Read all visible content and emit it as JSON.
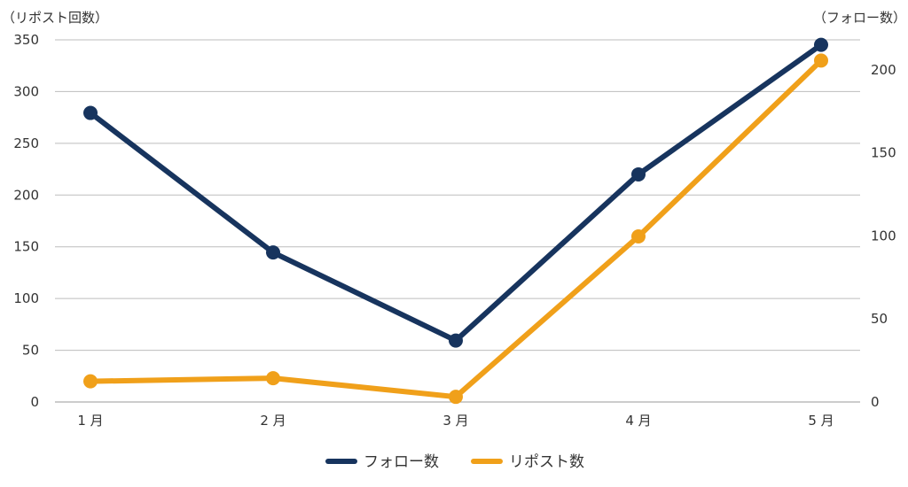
{
  "chart_data": {
    "type": "line",
    "categories": [
      "1 月",
      "2 月",
      "3 月",
      "4 月",
      "5 月"
    ],
    "y_left": {
      "label": "（リポスト回数）",
      "range": [
        0,
        350
      ],
      "ticks": [
        0,
        50,
        100,
        150,
        200,
        250,
        300,
        350
      ]
    },
    "y_right": {
      "label": "（フォロー数）",
      "range": [
        0,
        218
      ],
      "ticks": [
        0,
        50,
        100,
        150,
        200
      ]
    },
    "grid": true,
    "legend_position": "bottom",
    "series": [
      {
        "name": "フォロー数",
        "axis": "right",
        "color": "#17345e",
        "values": [
          174,
          90,
          37,
          137,
          215
        ]
      },
      {
        "name": "リポスト数",
        "axis": "left",
        "color": "#f0a01a",
        "values": [
          20,
          23,
          5,
          160,
          330
        ]
      }
    ]
  }
}
